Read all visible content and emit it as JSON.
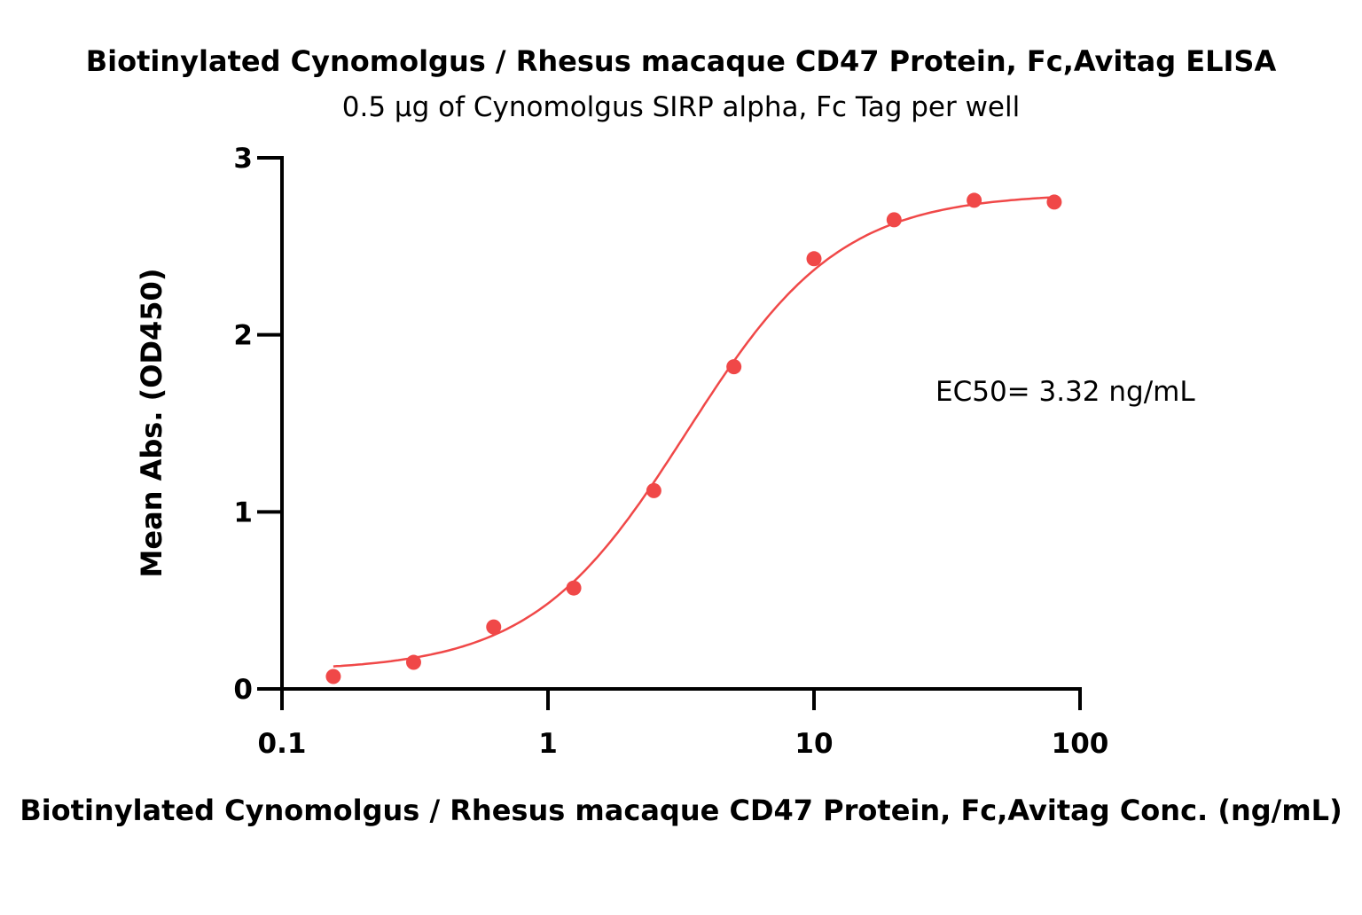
{
  "chart_data": {
    "type": "scatter",
    "title": "Biotinylated Cynomolgus / Rhesus macaque CD47 Protein, Fc,Avitag ELISA",
    "subtitle": "0.5 µg of Cynomolgus SIRP alpha, Fc Tag per well",
    "xlabel": "Biotinylated Cynomolgus / Rhesus macaque CD47 Protein, Fc,Avitag Conc. (ng/mL)",
    "ylabel": "Mean Abs. (OD450)",
    "xscale": "log",
    "xlim": [
      0.1,
      100
    ],
    "ylim": [
      0,
      3
    ],
    "xticks": [
      "0.1",
      "1",
      "10",
      "100"
    ],
    "yticks": [
      "0",
      "1",
      "2",
      "3"
    ],
    "grid": false,
    "color": "#F04848",
    "annotation": "EC50= 3.32 ng/mL",
    "series": [
      {
        "x": [
          0.156,
          0.3125,
          0.625,
          1.25,
          2.5,
          5,
          10,
          20,
          40,
          80
        ],
        "y": [
          0.07,
          0.15,
          0.35,
          0.57,
          1.12,
          1.82,
          2.43,
          2.65,
          2.76,
          2.75
        ],
        "fit": "sigmoidal curve"
      }
    ]
  }
}
